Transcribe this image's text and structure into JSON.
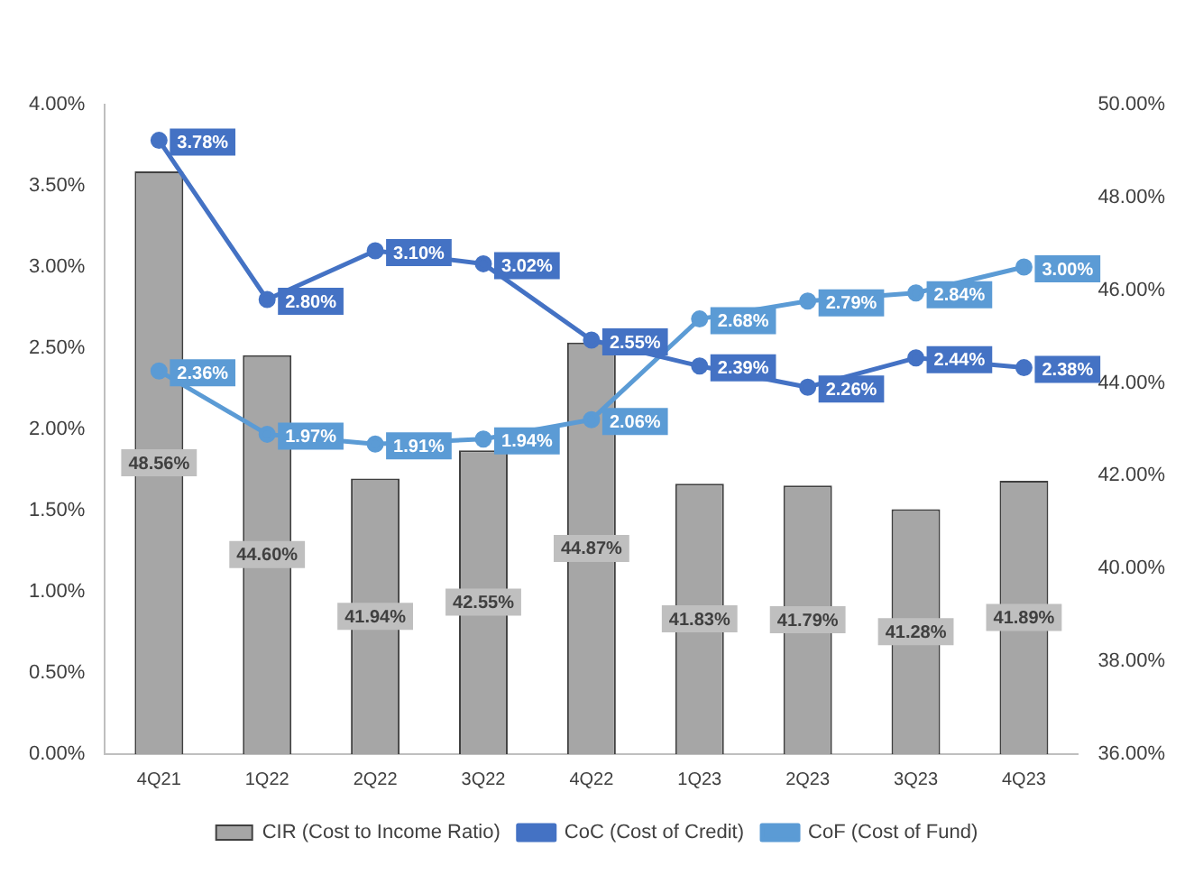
{
  "chart_data": {
    "type": "bar",
    "categories": [
      "4Q21",
      "1Q22",
      "2Q22",
      "3Q22",
      "4Q22",
      "1Q23",
      "2Q23",
      "3Q23",
      "4Q23"
    ],
    "series": [
      {
        "name": "CIR (Cost to Income Ratio)",
        "axis": "y2",
        "color": "#a6a6a6",
        "values": [
          48.56,
          44.6,
          41.94,
          42.55,
          44.87,
          41.83,
          41.79,
          41.28,
          41.89
        ],
        "value_labels": [
          "48.56%",
          "44.60%",
          "41.94%",
          "42.55%",
          "44.87%",
          "41.83%",
          "41.79%",
          "41.28%",
          "41.89%"
        ]
      },
      {
        "name": "CoC (Cost of Credit)",
        "type": "line",
        "color": "#4472c4",
        "values": [
          3.78,
          2.8,
          3.1,
          3.02,
          2.55,
          2.39,
          2.26,
          2.44,
          2.38
        ],
        "value_labels": [
          "3.78%",
          "2.80%",
          "3.10%",
          "3.02%",
          "2.55%",
          "2.39%",
          "2.26%",
          "2.44%",
          "2.38%"
        ]
      },
      {
        "name": "CoF (Cost of Fund)",
        "type": "line",
        "color": "#5b9bd5",
        "values": [
          2.36,
          1.97,
          1.91,
          1.94,
          2.06,
          2.68,
          2.79,
          2.84,
          3.0
        ],
        "value_labels": [
          "2.36%",
          "1.97%",
          "1.91%",
          "1.94%",
          "2.06%",
          "2.68%",
          "2.79%",
          "2.84%",
          "3.00%"
        ]
      }
    ],
    "ylim": [
      0,
      4
    ],
    "yticks": [
      {
        "value": 0,
        "label": "0.00%"
      },
      {
        "value": 0.5,
        "label": "0.50%"
      },
      {
        "value": 1,
        "label": "1.00%"
      },
      {
        "value": 1.5,
        "label": "1.50%"
      },
      {
        "value": 2,
        "label": "2.00%"
      },
      {
        "value": 2.5,
        "label": "2.50%"
      },
      {
        "value": 3,
        "label": "3.00%"
      },
      {
        "value": 3.5,
        "label": "3.50%"
      },
      {
        "value": 4,
        "label": "4.00%"
      }
    ],
    "y2lim": [
      36,
      50
    ],
    "y2ticks": [
      {
        "value": 36,
        "label": "36.00%"
      },
      {
        "value": 38,
        "label": "38.00%"
      },
      {
        "value": 40,
        "label": "40.00%"
      },
      {
        "value": 42,
        "label": "42.00%"
      },
      {
        "value": 44,
        "label": "44.00%"
      },
      {
        "value": 46,
        "label": "46.00%"
      },
      {
        "value": 48,
        "label": "48.00%"
      },
      {
        "value": 50,
        "label": "50.00%"
      }
    ],
    "legend": "bottom",
    "marker": "circle",
    "grid": false
  }
}
